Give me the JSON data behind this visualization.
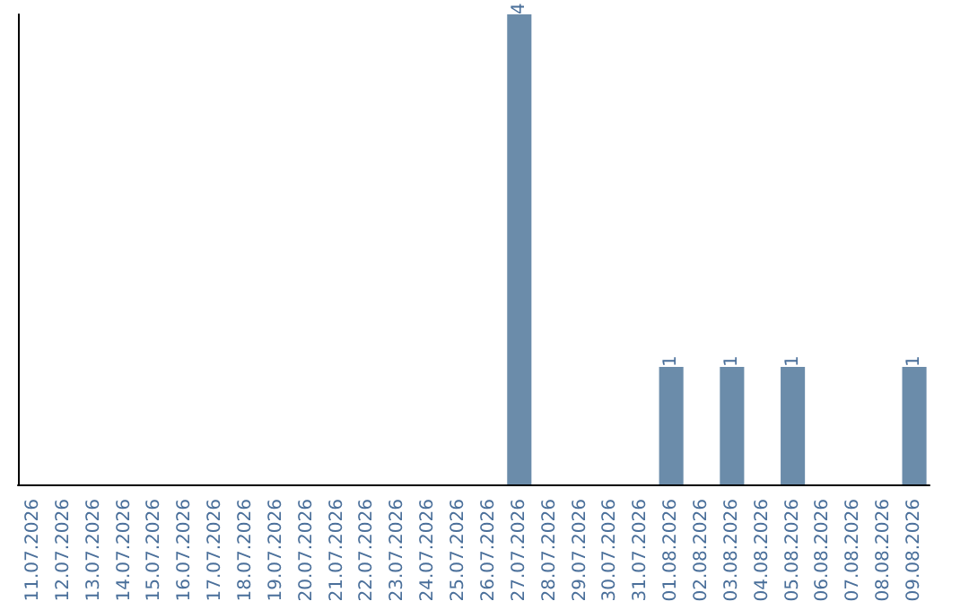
{
  "chart_data": {
    "type": "bar",
    "categories": [
      "11.07.2026",
      "12.07.2026",
      "13.07.2026",
      "14.07.2026",
      "15.07.2026",
      "16.07.2026",
      "17.07.2026",
      "18.07.2026",
      "19.07.2026",
      "20.07.2026",
      "21.07.2026",
      "22.07.2026",
      "23.07.2026",
      "24.07.2026",
      "25.07.2026",
      "26.07.2026",
      "27.07.2026",
      "28.07.2026",
      "29.07.2026",
      "30.07.2026",
      "31.07.2026",
      "01.08.2026",
      "02.08.2026",
      "03.08.2026",
      "04.08.2026",
      "05.08.2026",
      "06.08.2026",
      "07.08.2026",
      "08.08.2026",
      "09.08.2026"
    ],
    "values": [
      null,
      null,
      null,
      null,
      null,
      null,
      null,
      null,
      null,
      null,
      null,
      null,
      null,
      null,
      null,
      null,
      4,
      null,
      null,
      null,
      null,
      1,
      null,
      1,
      null,
      1,
      null,
      null,
      null,
      1
    ],
    "value_labels": [
      null,
      null,
      null,
      null,
      null,
      null,
      null,
      null,
      null,
      null,
      null,
      null,
      null,
      null,
      null,
      null,
      "4",
      null,
      null,
      null,
      null,
      "1",
      null,
      "1",
      null,
      "1",
      null,
      null,
      null,
      "1"
    ],
    "color": "#6b8caa",
    "tick_labels": "x",
    "grid": false
  }
}
